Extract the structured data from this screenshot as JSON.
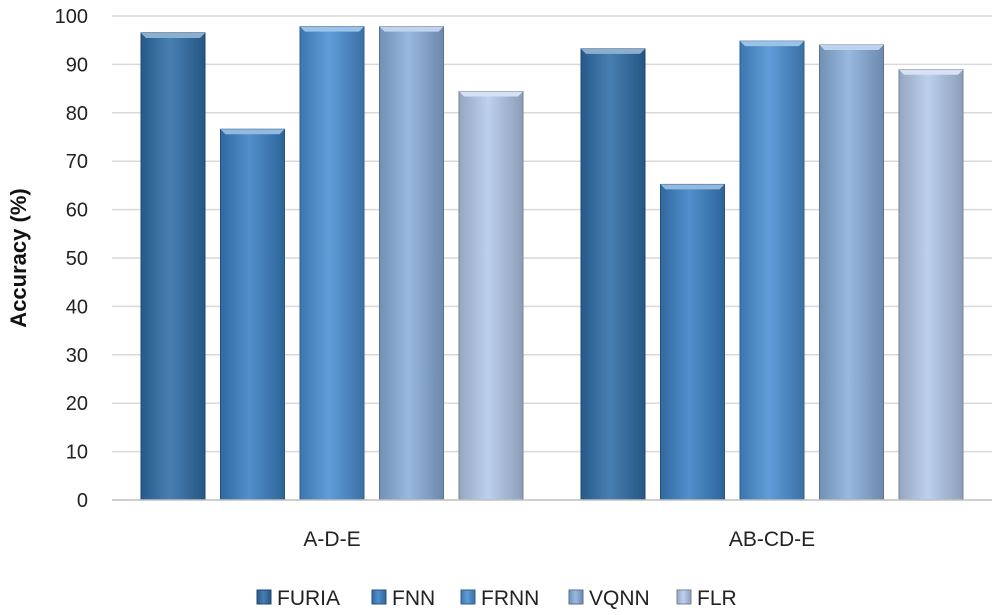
{
  "chart_data": {
    "type": "bar",
    "title": "",
    "xlabel": "",
    "ylabel": "Accuracy (%)",
    "ylim": [
      0,
      100
    ],
    "yticks": [
      0,
      10,
      20,
      30,
      40,
      50,
      60,
      70,
      80,
      90,
      100
    ],
    "grid": true,
    "legend_position": "bottom",
    "categories": [
      "A-D-E",
      "AB-CD-E"
    ],
    "series": [
      {
        "name": "FURIA",
        "values": [
          96.5,
          93.2
        ],
        "color": "#2f6ea8"
      },
      {
        "name": "FNN",
        "values": [
          76.6,
          65.2
        ],
        "color": "#3a80c4"
      },
      {
        "name": "FRNN",
        "values": [
          97.8,
          94.8
        ],
        "color": "#4a90d4"
      },
      {
        "name": "VQNN",
        "values": [
          97.8,
          94.0
        ],
        "color": "#8ab0dc"
      },
      {
        "name": "FLR",
        "values": [
          84.4,
          88.9
        ],
        "color": "#b4caea"
      }
    ]
  }
}
